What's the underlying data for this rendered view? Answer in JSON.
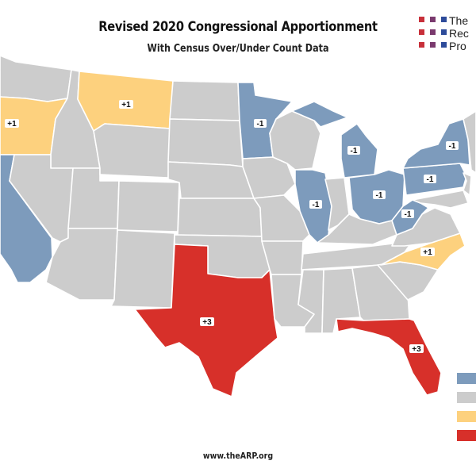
{
  "title": "Revised 2020 Congressional Apportionment",
  "subtitle": "With Census Over/Under Count Data",
  "logo": {
    "lines": [
      "The",
      "Rec",
      "Pro"
    ],
    "dot_colors": [
      [
        "#c8303a",
        "#7a3a6e",
        "#2d4b9a"
      ],
      [
        "#c8303a",
        "#7a3a6e",
        "#2d4b9a"
      ],
      [
        "#c8303a",
        "#7a3a6e",
        "#2d4b9a"
      ]
    ]
  },
  "colors": {
    "loss": "#7d9bbc",
    "no_change": "#cccccc",
    "gain_one": "#fdd17e",
    "gain_multi": "#d7302a",
    "border": "#ffffff",
    "water": "#ffffff"
  },
  "labels": {
    "oregon": "+1",
    "montana": "+1",
    "minnesota": "-1",
    "michigan": "-1",
    "illinois": "-1",
    "ohio": "-1",
    "west_virginia": "-1",
    "pennsylvania": "-1",
    "new_york": "-1",
    "north_carolina": "+1",
    "texas": "+3",
    "florida": "+3"
  },
  "footer": "www.theARP.org"
}
